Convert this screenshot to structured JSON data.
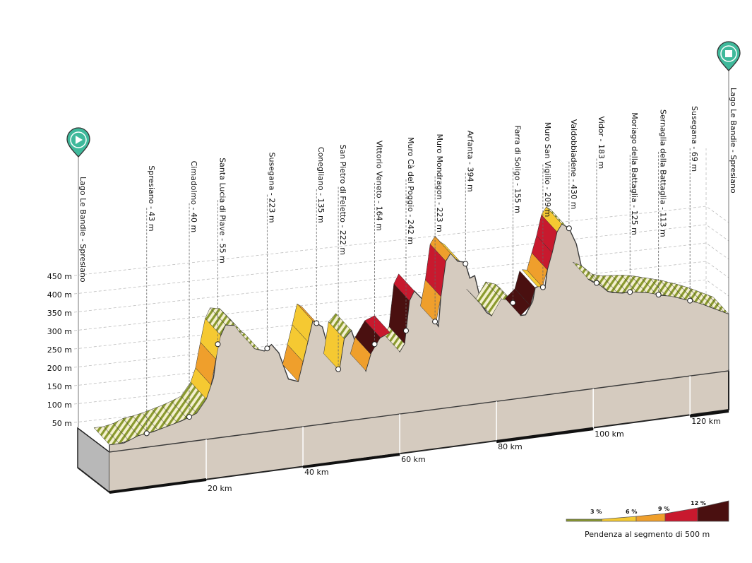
{
  "start_label": "Lago Le Bandie - Spresiano",
  "finish_label": "Lago Le Bandie - Spresiano",
  "y_axis": [
    "50 m",
    "100 m",
    "150 m",
    "200 m",
    "250 m",
    "300 m",
    "350 m",
    "400 m",
    "450 m"
  ],
  "x_axis": [
    "20 km",
    "40 km",
    "60 km",
    "80 km",
    "100 km",
    "120 km"
  ],
  "waypoints": [
    {
      "label": "Spresiano - 43 m",
      "km": 7.7,
      "ele": 43
    },
    {
      "label": "Cimadolmo - 40 m",
      "km": 16.5,
      "ele": 40
    },
    {
      "label": "Santa Lucia di Piave - 55 m",
      "km": 22.4,
      "ele": 55
    },
    {
      "label": "Susegana - 223 m",
      "km": 32.6,
      "ele": 223
    },
    {
      "label": "Conegliano - 135 m",
      "km": 42.8,
      "ele": 135
    },
    {
      "label": "San Pietro di Feletto - 222 m",
      "km": 47.3,
      "ele": 222
    },
    {
      "label": "Vittorio Veneto - 164 m",
      "km": 54.8,
      "ele": 164
    },
    {
      "label": "Muro Cà del Poggio - 242 m",
      "km": 61.3,
      "ele": 242
    },
    {
      "label": "Muro Mondragon - 223 m",
      "km": 67.3,
      "ele": 223
    },
    {
      "label": "Arfanta - 394 m",
      "km": 73.6,
      "ele": 394
    },
    {
      "label": "Farra di Soligo - 155 m",
      "km": 83.4,
      "ele": 155
    },
    {
      "label": "Muro San Vigilio - 209 m",
      "km": 89.6,
      "ele": 209
    },
    {
      "label": "Valdobbiadene - 430 m",
      "km": 95.0,
      "ele": 430
    },
    {
      "label": "Vidor - 183 m",
      "km": 100.7,
      "ele": 183
    },
    {
      "label": "Moriago della Battaglia - 125 m",
      "km": 107.6,
      "ele": 125
    },
    {
      "label": "Sernaglia della Battaglia - 113 m",
      "km": 113.5,
      "ele": 113
    },
    {
      "label": "Susegana - 69 m",
      "km": 120.0,
      "ele": 69
    }
  ],
  "legend": {
    "labels": [
      "3 %",
      "6 %",
      "9 %",
      "12 %"
    ],
    "caption": "Pendenza al segmento di 500 m",
    "colors": [
      "#8a9a2e",
      "#f5c932",
      "#ef9f2c",
      "#c8192e",
      "#4a1010"
    ]
  },
  "icons": {
    "start": "play-icon",
    "finish": "stop-icon"
  }
}
